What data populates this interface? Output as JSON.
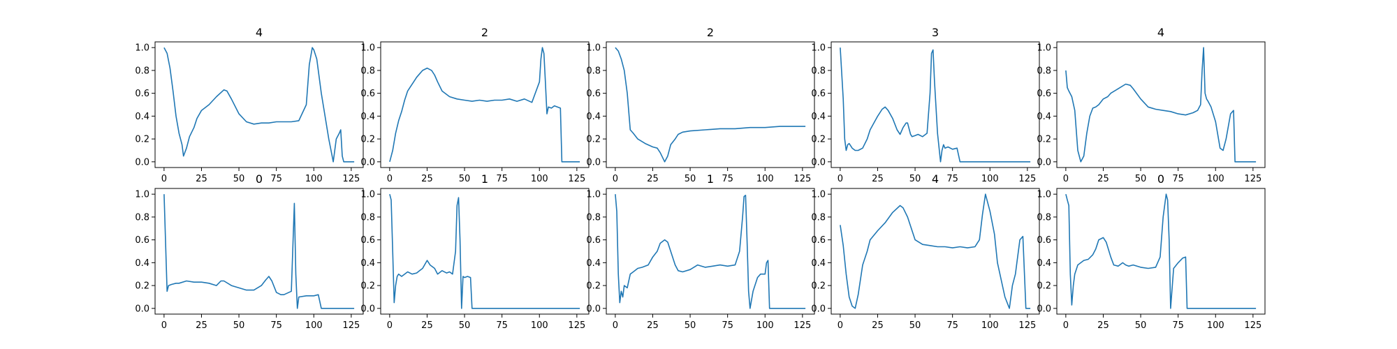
{
  "colors": {
    "line": "#1f77b4",
    "axes": "#000000",
    "background": "#ffffff"
  },
  "chart_data": [
    {
      "type": "line",
      "title": "4",
      "xlim": [
        -6,
        133
      ],
      "ylim": [
        -0.05,
        1.05
      ],
      "grid": false,
      "xticks": [
        0,
        25,
        50,
        75,
        100,
        125
      ],
      "yticks": [
        0.0,
        0.2,
        0.4,
        0.6,
        0.8,
        1.0
      ],
      "series": [
        {
          "x": [
            0,
            2,
            4,
            6,
            8,
            10,
            12,
            13,
            15,
            17,
            20,
            22,
            25,
            30,
            35,
            40,
            42,
            45,
            50,
            55,
            60,
            65,
            70,
            75,
            80,
            85,
            90,
            95,
            97,
            99,
            100,
            102,
            105,
            110,
            113,
            115,
            117,
            118,
            119,
            120,
            122,
            125,
            127
          ],
          "y": [
            1.0,
            0.95,
            0.82,
            0.62,
            0.4,
            0.25,
            0.15,
            0.05,
            0.12,
            0.22,
            0.3,
            0.38,
            0.45,
            0.5,
            0.57,
            0.63,
            0.62,
            0.55,
            0.42,
            0.35,
            0.33,
            0.34,
            0.34,
            0.35,
            0.35,
            0.35,
            0.36,
            0.5,
            0.85,
            1.0,
            0.98,
            0.9,
            0.6,
            0.2,
            0.0,
            0.2,
            0.25,
            0.28,
            0.05,
            0.0,
            0.0,
            0.0,
            0.0
          ]
        }
      ]
    },
    {
      "type": "line",
      "title": "2",
      "xlim": [
        -6,
        133
      ],
      "ylim": [
        -0.05,
        1.05
      ],
      "grid": false,
      "xticks": [
        0,
        25,
        50,
        75,
        100,
        125
      ],
      "yticks": [
        0.0,
        0.2,
        0.4,
        0.6,
        0.8,
        1.0
      ],
      "series": [
        {
          "x": [
            0,
            2,
            4,
            6,
            8,
            10,
            12,
            14,
            16,
            18,
            20,
            22,
            25,
            28,
            30,
            32,
            35,
            40,
            45,
            50,
            55,
            60,
            65,
            70,
            75,
            80,
            85,
            90,
            95,
            100,
            101,
            102,
            103,
            104,
            105,
            106,
            108,
            110,
            112,
            114,
            115,
            116,
            120,
            125,
            127
          ],
          "y": [
            0.0,
            0.1,
            0.25,
            0.36,
            0.44,
            0.54,
            0.62,
            0.66,
            0.7,
            0.74,
            0.77,
            0.8,
            0.82,
            0.8,
            0.76,
            0.7,
            0.62,
            0.57,
            0.55,
            0.54,
            0.53,
            0.54,
            0.53,
            0.54,
            0.54,
            0.55,
            0.53,
            0.55,
            0.52,
            0.7,
            0.9,
            1.0,
            0.95,
            0.7,
            0.42,
            0.48,
            0.47,
            0.49,
            0.48,
            0.47,
            0.0,
            0.0,
            0.0,
            0.0,
            0.0
          ]
        }
      ]
    },
    {
      "type": "line",
      "title": "2",
      "xlim": [
        -6,
        133
      ],
      "ylim": [
        -0.05,
        1.05
      ],
      "grid": false,
      "xticks": [
        0,
        25,
        50,
        75,
        100,
        125
      ],
      "yticks": [
        0.0,
        0.2,
        0.4,
        0.6,
        0.8,
        1.0
      ],
      "series": [
        {
          "x": [
            0,
            2,
            4,
            6,
            8,
            10,
            12,
            15,
            20,
            25,
            28,
            30,
            33,
            35,
            37,
            40,
            42,
            45,
            50,
            60,
            70,
            80,
            90,
            100,
            110,
            120,
            127
          ],
          "y": [
            1.0,
            0.97,
            0.9,
            0.8,
            0.6,
            0.28,
            0.25,
            0.2,
            0.16,
            0.13,
            0.12,
            0.08,
            0.0,
            0.05,
            0.15,
            0.2,
            0.24,
            0.26,
            0.27,
            0.28,
            0.29,
            0.29,
            0.3,
            0.3,
            0.31,
            0.31,
            0.31
          ]
        }
      ]
    },
    {
      "type": "line",
      "title": "3",
      "xlim": [
        -6,
        133
      ],
      "ylim": [
        -0.05,
        1.05
      ],
      "grid": false,
      "xticks": [
        0,
        25,
        50,
        75,
        100,
        125
      ],
      "yticks": [
        0.0,
        0.2,
        0.4,
        0.6,
        0.8,
        1.0
      ],
      "series": [
        {
          "x": [
            0,
            2,
            3,
            4,
            5,
            6,
            8,
            10,
            12,
            15,
            18,
            20,
            25,
            28,
            30,
            32,
            35,
            38,
            40,
            42,
            44,
            45,
            47,
            48,
            50,
            52,
            55,
            58,
            60,
            61,
            62,
            63,
            65,
            67,
            68,
            69,
            70,
            72,
            75,
            78,
            80,
            85,
            90,
            100,
            110,
            120,
            127
          ],
          "y": [
            1.0,
            0.55,
            0.2,
            0.1,
            0.15,
            0.16,
            0.12,
            0.1,
            0.1,
            0.12,
            0.2,
            0.28,
            0.4,
            0.46,
            0.48,
            0.45,
            0.38,
            0.28,
            0.24,
            0.3,
            0.34,
            0.34,
            0.24,
            0.22,
            0.23,
            0.24,
            0.22,
            0.25,
            0.6,
            0.95,
            0.98,
            0.7,
            0.25,
            0.0,
            0.1,
            0.15,
            0.12,
            0.13,
            0.11,
            0.12,
            0.0,
            0.0,
            0.0,
            0.0,
            0.0,
            0.0,
            0.0
          ]
        }
      ]
    },
    {
      "type": "line",
      "title": "4",
      "xlim": [
        -6,
        133
      ],
      "ylim": [
        -0.05,
        1.05
      ],
      "grid": false,
      "xticks": [
        0,
        25,
        50,
        75,
        100,
        125
      ],
      "yticks": [
        0.0,
        0.2,
        0.4,
        0.6,
        0.8,
        1.0
      ],
      "series": [
        {
          "x": [
            0,
            1,
            2,
            4,
            6,
            8,
            10,
            12,
            14,
            16,
            18,
            20,
            22,
            25,
            28,
            30,
            35,
            40,
            43,
            45,
            50,
            55,
            60,
            65,
            70,
            75,
            80,
            85,
            88,
            90,
            91,
            92,
            93,
            94,
            95,
            97,
            100,
            103,
            105,
            107,
            110,
            112,
            113,
            115,
            120,
            125,
            127
          ],
          "y": [
            0.8,
            0.65,
            0.62,
            0.57,
            0.45,
            0.1,
            0.0,
            0.05,
            0.25,
            0.4,
            0.47,
            0.48,
            0.5,
            0.55,
            0.57,
            0.6,
            0.64,
            0.68,
            0.67,
            0.64,
            0.55,
            0.48,
            0.46,
            0.45,
            0.44,
            0.42,
            0.41,
            0.43,
            0.45,
            0.5,
            0.8,
            1.0,
            0.6,
            0.55,
            0.53,
            0.48,
            0.35,
            0.12,
            0.1,
            0.2,
            0.42,
            0.45,
            0.0,
            0.0,
            0.0,
            0.0,
            0.0
          ]
        }
      ]
    },
    {
      "type": "line",
      "title": "0",
      "xlim": [
        -6,
        133
      ],
      "ylim": [
        -0.05,
        1.05
      ],
      "grid": false,
      "xticks": [
        0,
        25,
        50,
        75,
        100,
        125
      ],
      "yticks": [
        0.0,
        0.2,
        0.4,
        0.6,
        0.8,
        1.0
      ],
      "series": [
        {
          "x": [
            0,
            2,
            3,
            5,
            8,
            10,
            15,
            20,
            25,
            30,
            35,
            38,
            40,
            45,
            50,
            55,
            60,
            65,
            68,
            70,
            72,
            75,
            78,
            80,
            85,
            87,
            88,
            89,
            90,
            95,
            100,
            103,
            105,
            110,
            120,
            127
          ],
          "y": [
            1.0,
            0.15,
            0.2,
            0.21,
            0.22,
            0.22,
            0.24,
            0.23,
            0.23,
            0.22,
            0.2,
            0.24,
            0.24,
            0.2,
            0.18,
            0.16,
            0.16,
            0.2,
            0.25,
            0.28,
            0.24,
            0.14,
            0.12,
            0.12,
            0.15,
            0.92,
            0.3,
            0.0,
            0.1,
            0.11,
            0.11,
            0.12,
            0.0,
            0.0,
            0.0,
            0.0
          ]
        }
      ]
    },
    {
      "type": "line",
      "title": "1",
      "xlim": [
        -6,
        133
      ],
      "ylim": [
        -0.05,
        1.05
      ],
      "grid": false,
      "xticks": [
        0,
        25,
        50,
        75,
        100,
        125
      ],
      "yticks": [
        0.0,
        0.2,
        0.4,
        0.6,
        0.8,
        1.0
      ],
      "series": [
        {
          "x": [
            0,
            1,
            2,
            3,
            4,
            5,
            6,
            8,
            10,
            12,
            15,
            18,
            20,
            22,
            25,
            27,
            30,
            32,
            35,
            38,
            40,
            42,
            44,
            45,
            46,
            47,
            48,
            49,
            50,
            52,
            54,
            55,
            60,
            70,
            80,
            90,
            100,
            110,
            120,
            127
          ],
          "y": [
            1.0,
            0.95,
            0.5,
            0.05,
            0.2,
            0.28,
            0.3,
            0.28,
            0.3,
            0.32,
            0.3,
            0.31,
            0.33,
            0.35,
            0.42,
            0.38,
            0.35,
            0.3,
            0.33,
            0.31,
            0.32,
            0.3,
            0.5,
            0.9,
            0.97,
            0.6,
            0.0,
            0.28,
            0.27,
            0.28,
            0.27,
            0.0,
            0.0,
            0.0,
            0.0,
            0.0,
            0.0,
            0.0,
            0.0,
            0.0
          ]
        }
      ]
    },
    {
      "type": "line",
      "title": "1",
      "xlim": [
        -6,
        133
      ],
      "ylim": [
        -0.05,
        1.05
      ],
      "grid": false,
      "xticks": [
        0,
        25,
        50,
        75,
        100,
        125
      ],
      "yticks": [
        0.0,
        0.2,
        0.4,
        0.6,
        0.8,
        1.0
      ],
      "series": [
        {
          "x": [
            0,
            1,
            2,
            3,
            4,
            5,
            6,
            8,
            10,
            12,
            15,
            18,
            20,
            22,
            25,
            28,
            30,
            33,
            35,
            37,
            40,
            42,
            45,
            50,
            55,
            60,
            65,
            70,
            75,
            80,
            83,
            85,
            86,
            87,
            88,
            89,
            90,
            92,
            95,
            97,
            100,
            101,
            102,
            103,
            105,
            110,
            120,
            127
          ],
          "y": [
            1.0,
            0.85,
            0.3,
            0.05,
            0.15,
            0.1,
            0.2,
            0.18,
            0.3,
            0.32,
            0.35,
            0.36,
            0.37,
            0.38,
            0.45,
            0.5,
            0.57,
            0.6,
            0.58,
            0.5,
            0.38,
            0.33,
            0.32,
            0.34,
            0.38,
            0.36,
            0.37,
            0.38,
            0.37,
            0.38,
            0.5,
            0.8,
            0.98,
            0.99,
            0.6,
            0.15,
            0.0,
            0.15,
            0.27,
            0.3,
            0.3,
            0.4,
            0.42,
            0.0,
            0.0,
            0.0,
            0.0,
            0.0
          ]
        }
      ]
    },
    {
      "type": "line",
      "title": "4",
      "xlim": [
        -6,
        133
      ],
      "ylim": [
        -0.05,
        1.05
      ],
      "grid": false,
      "xticks": [
        0,
        25,
        50,
        75,
        100,
        125
      ],
      "yticks": [
        0.0,
        0.2,
        0.4,
        0.6,
        0.8,
        1.0
      ],
      "series": [
        {
          "x": [
            0,
            2,
            4,
            6,
            8,
            10,
            12,
            15,
            18,
            20,
            25,
            30,
            35,
            40,
            42,
            45,
            50,
            55,
            60,
            65,
            70,
            75,
            80,
            85,
            90,
            93,
            95,
            97,
            100,
            103,
            105,
            110,
            113,
            115,
            117,
            118,
            120,
            122,
            124,
            127
          ],
          "y": [
            0.73,
            0.55,
            0.3,
            0.1,
            0.02,
            0.0,
            0.12,
            0.38,
            0.5,
            0.6,
            0.68,
            0.75,
            0.84,
            0.9,
            0.88,
            0.8,
            0.6,
            0.56,
            0.55,
            0.54,
            0.54,
            0.53,
            0.54,
            0.53,
            0.54,
            0.6,
            0.82,
            1.0,
            0.85,
            0.65,
            0.4,
            0.1,
            0.0,
            0.2,
            0.3,
            0.4,
            0.6,
            0.63,
            0.0,
            0.0
          ]
        }
      ]
    },
    {
      "type": "line",
      "title": "0",
      "xlim": [
        -6,
        133
      ],
      "ylim": [
        -0.05,
        1.05
      ],
      "grid": false,
      "xticks": [
        0,
        25,
        50,
        75,
        100,
        125
      ],
      "yticks": [
        0.0,
        0.2,
        0.4,
        0.6,
        0.8,
        1.0
      ],
      "series": [
        {
          "x": [
            0,
            1,
            2,
            3,
            4,
            5,
            6,
            8,
            10,
            12,
            15,
            18,
            20,
            22,
            25,
            27,
            30,
            32,
            35,
            38,
            40,
            42,
            45,
            50,
            55,
            60,
            63,
            65,
            67,
            68,
            69,
            70,
            72,
            75,
            78,
            80,
            81,
            85,
            90,
            100,
            110,
            120,
            127
          ],
          "y": [
            1.0,
            0.95,
            0.9,
            0.3,
            0.03,
            0.2,
            0.3,
            0.38,
            0.4,
            0.42,
            0.43,
            0.47,
            0.52,
            0.6,
            0.62,
            0.58,
            0.45,
            0.38,
            0.37,
            0.4,
            0.38,
            0.37,
            0.38,
            0.36,
            0.35,
            0.36,
            0.45,
            0.8,
            1.0,
            0.95,
            0.6,
            0.0,
            0.35,
            0.4,
            0.44,
            0.45,
            0.0,
            0.0,
            0.0,
            0.0,
            0.0,
            0.0,
            0.0
          ]
        }
      ]
    }
  ]
}
